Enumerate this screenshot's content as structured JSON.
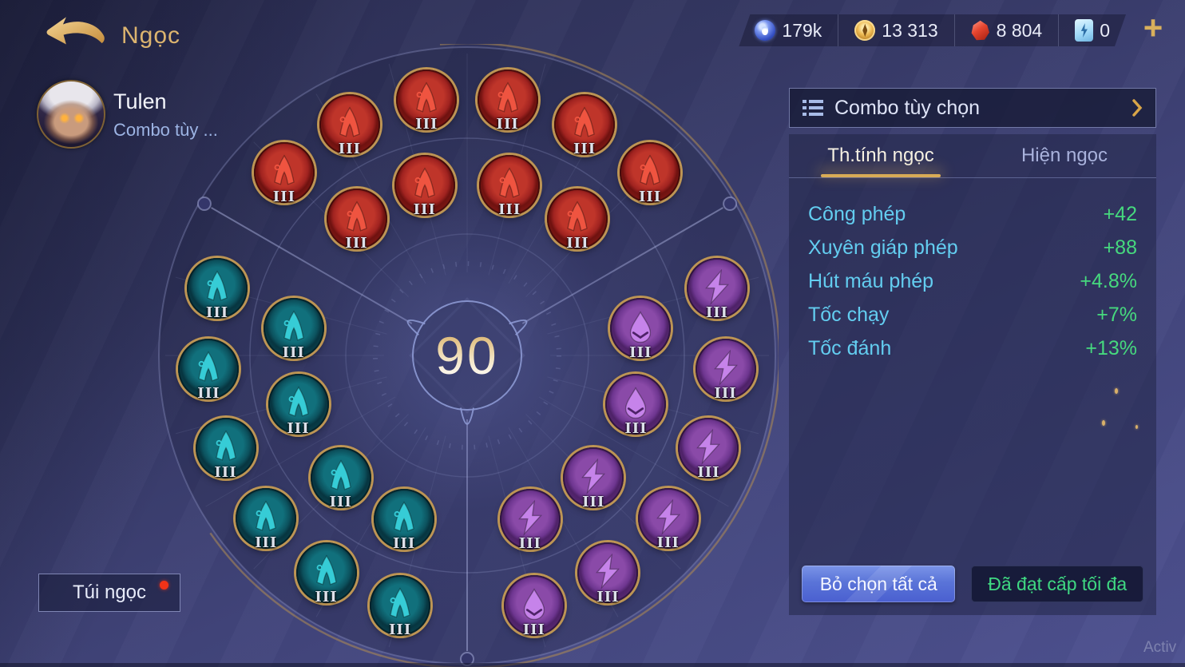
{
  "app": {
    "title": "Ngọc",
    "watermark": "Activ"
  },
  "currency_bar": {
    "items": [
      {
        "icon": "blue-orb-icon",
        "value": "179k"
      },
      {
        "icon": "gold-coin-icon",
        "value": "13 313"
      },
      {
        "icon": "red-gem-icon",
        "value": "8 804"
      },
      {
        "icon": "blue-ticket-icon",
        "value": "0"
      }
    ],
    "add_label": "+"
  },
  "hero": {
    "name": "Tulen",
    "combo_label": "Combo tùy ..."
  },
  "wheel": {
    "level": "90",
    "gems": [
      {
        "color": "red",
        "symbol": "rune",
        "ring": "outer",
        "angle": -45,
        "level": "III"
      },
      {
        "color": "red",
        "symbol": "rune",
        "ring": "outer",
        "angle": -27,
        "level": "III"
      },
      {
        "color": "red",
        "symbol": "rune",
        "ring": "outer",
        "angle": -9,
        "level": "III"
      },
      {
        "color": "red",
        "symbol": "rune",
        "ring": "outer",
        "angle": 9,
        "level": "III"
      },
      {
        "color": "red",
        "symbol": "rune",
        "ring": "outer",
        "angle": 27,
        "level": "III"
      },
      {
        "color": "red",
        "symbol": "rune",
        "ring": "outer",
        "angle": 45,
        "level": "III"
      },
      {
        "color": "red",
        "symbol": "rune",
        "ring": "inner",
        "angle": -39,
        "level": "III"
      },
      {
        "color": "red",
        "symbol": "rune",
        "ring": "inner",
        "angle": -14,
        "level": "III"
      },
      {
        "color": "red",
        "symbol": "rune",
        "ring": "inner",
        "angle": 14,
        "level": "III"
      },
      {
        "color": "red",
        "symbol": "rune",
        "ring": "inner",
        "angle": 39,
        "level": "III"
      },
      {
        "color": "purple",
        "symbol": "bolt",
        "ring": "outer",
        "angle": 75,
        "level": "III"
      },
      {
        "color": "purple",
        "symbol": "bolt",
        "ring": "outer",
        "angle": 93,
        "level": "III"
      },
      {
        "color": "purple",
        "symbol": "bolt",
        "ring": "outer",
        "angle": 111,
        "level": "III"
      },
      {
        "color": "purple",
        "symbol": "bolt",
        "ring": "outer",
        "angle": 129,
        "level": "III"
      },
      {
        "color": "purple",
        "symbol": "bolt",
        "ring": "outer",
        "angle": 147,
        "level": "III"
      },
      {
        "color": "purple",
        "symbol": "drop",
        "ring": "outer",
        "angle": 165,
        "level": "III"
      },
      {
        "color": "purple",
        "symbol": "drop",
        "ring": "inner",
        "angle": 81,
        "level": "III"
      },
      {
        "color": "purple",
        "symbol": "drop",
        "ring": "inner",
        "angle": 106,
        "level": "III"
      },
      {
        "color": "purple",
        "symbol": "bolt",
        "ring": "inner",
        "angle": 134,
        "level": "III"
      },
      {
        "color": "purple",
        "symbol": "bolt",
        "ring": "inner",
        "angle": 159,
        "level": "III"
      },
      {
        "color": "teal",
        "symbol": "rune",
        "ring": "outer",
        "angle": 195,
        "level": "III"
      },
      {
        "color": "teal",
        "symbol": "rune",
        "ring": "outer",
        "angle": 213,
        "level": "III"
      },
      {
        "color": "teal",
        "symbol": "rune",
        "ring": "outer",
        "angle": 231,
        "level": "III"
      },
      {
        "color": "teal",
        "symbol": "rune",
        "ring": "outer",
        "angle": 249,
        "level": "III"
      },
      {
        "color": "teal",
        "symbol": "rune",
        "ring": "outer",
        "angle": 267,
        "level": "III"
      },
      {
        "color": "teal",
        "symbol": "rune",
        "ring": "outer",
        "angle": 285,
        "level": "III"
      },
      {
        "color": "teal",
        "symbol": "rune",
        "ring": "inner",
        "angle": 201,
        "level": "III"
      },
      {
        "color": "teal",
        "symbol": "rune",
        "ring": "inner",
        "angle": 226,
        "level": "III"
      },
      {
        "color": "teal",
        "symbol": "rune",
        "ring": "inner",
        "angle": 254,
        "level": "III"
      },
      {
        "color": "teal",
        "symbol": "rune",
        "ring": "inner",
        "angle": 279,
        "level": "III"
      }
    ]
  },
  "rune_bag_button": {
    "label": "Túi ngọc",
    "notification": true
  },
  "side_panel": {
    "combo_header": {
      "label": "Combo tùy chọn"
    },
    "tabs": [
      {
        "label": "Th.tính ngọc",
        "active": true
      },
      {
        "label": "Hiện ngọc",
        "active": false
      }
    ],
    "stats": [
      {
        "label": "Công phép",
        "value": "+42"
      },
      {
        "label": "Xuyên giáp phép",
        "value": "+88"
      },
      {
        "label": "Hút máu phép",
        "value": "+4.8%"
      },
      {
        "label": "Tốc chạy",
        "value": "+7%"
      },
      {
        "label": "Tốc đánh",
        "value": "+13%"
      }
    ],
    "buttons": [
      {
        "label": "Bỏ chọn tất cả",
        "style": "primary"
      },
      {
        "label": "Đã đạt cấp tối đa",
        "style": "maxed"
      }
    ]
  },
  "colors": {
    "accent_gold": "#d9b06a",
    "title_gold": "#dcb46f",
    "stat_label": "#63cdf0",
    "stat_value": "#46d97e",
    "tab_underline": "#d8ab56",
    "red_gem": "#a02320",
    "teal_gem": "#0c525e",
    "purple_gem": "#6e3690",
    "primary_button": "#5a74d8",
    "maxed_text": "#3fd882",
    "notification_red": "#f03318"
  }
}
